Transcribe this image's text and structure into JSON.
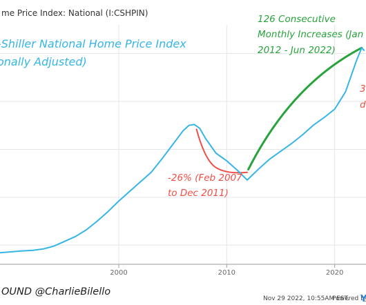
{
  "chart_data": {
    "type": "line",
    "title": "me Price Index: National (I:CSHPIN)",
    "x": [
      1989,
      1990,
      1991,
      1992,
      1993,
      1994,
      1995,
      1996,
      1997,
      1998,
      1999,
      2000,
      2001,
      2002,
      2003,
      2004,
      2005,
      2006,
      2006.5,
      2007,
      2007.5,
      2008,
      2009,
      2010,
      2011,
      2011.9,
      2013,
      2014,
      2015,
      2016,
      2017,
      2018,
      2019,
      2020,
      2021,
      2022,
      2022.5,
      2022.75
    ],
    "series": [
      {
        "values": [
          92,
          93,
          94,
          94.5,
          96,
          99,
          104,
          109,
          116,
          125,
          135,
          146,
          156,
          166,
          176,
          190,
          205,
          220,
          225,
          226,
          222,
          212,
          196,
          188,
          178,
          168,
          180,
          190,
          198,
          206,
          215,
          225,
          233,
          242,
          260,
          292,
          306,
          303
        ]
      }
    ],
    "xticks": [
      "2000",
      "2010",
      "2020"
    ],
    "xlim": [
      1989,
      2022.9
    ],
    "ylim": [
      80,
      330
    ],
    "grid": true,
    "annotations": {
      "index_title_line1": "-Shiller National Home Price Index",
      "index_title_line2": "onally Adjusted)",
      "rise_line1": "126 Consecutive",
      "rise_line2": "Monthly Increases (Jan",
      "rise_line3": "2012 - Jun 2022)",
      "fall_line1": "-26% (Feb 2007",
      "fall_line2": "to Dec 2011)",
      "right_red_1": "3",
      "right_red_2": "d"
    },
    "trend_rise": {
      "from": [
        2012,
        179
      ],
      "to": [
        2022.5,
        306
      ]
    },
    "trend_fall": {
      "from": [
        2007.2,
        221
      ],
      "via": [
        2008,
        196
      ],
      "to": [
        2011.9,
        176
      ]
    }
  },
  "footer": {
    "source_credit": "OUND @CharlieBilello",
    "timestamp": "Nov 29 2022, 10:55AM EST.",
    "powered_by": "Powered by",
    "brand_fragment": "Y"
  },
  "colors": {
    "series_line": "#35b5e6",
    "rise_annotation": "#27a33c",
    "fall_annotation": "#f04e45",
    "grid": "#e6e6e6"
  }
}
